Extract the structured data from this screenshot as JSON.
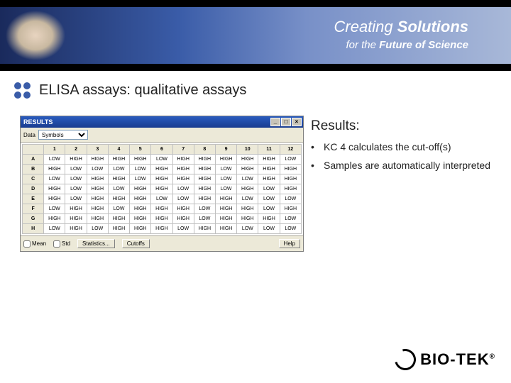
{
  "banner": {
    "line1_prefix": "Creating ",
    "line1_bold": "Solutions",
    "line2_prefix": "for the ",
    "line2_bold": "Future of Science"
  },
  "slide_title": "ELISA assays: qualitative assays",
  "window": {
    "title": "RESULTS",
    "data_label": "Data",
    "data_select": "Symbols",
    "columns": [
      "1",
      "2",
      "3",
      "4",
      "5",
      "6",
      "7",
      "8",
      "9",
      "10",
      "11",
      "12"
    ],
    "rows": [
      {
        "label": "A",
        "cells": [
          "LOW",
          "HIGH",
          "HIGH",
          "HIGH",
          "HIGH",
          "LOW",
          "HIGH",
          "HIGH",
          "HIGH",
          "HIGH",
          "HIGH",
          "LOW"
        ]
      },
      {
        "label": "B",
        "cells": [
          "HIGH",
          "LOW",
          "LOW",
          "LOW",
          "LOW",
          "HIGH",
          "HIGH",
          "HIGH",
          "LOW",
          "HIGH",
          "HIGH",
          "HIGH"
        ]
      },
      {
        "label": "C",
        "cells": [
          "LOW",
          "LOW",
          "HIGH",
          "HIGH",
          "LOW",
          "HIGH",
          "HIGH",
          "HIGH",
          "LOW",
          "LOW",
          "HIGH",
          "HIGH"
        ]
      },
      {
        "label": "D",
        "cells": [
          "HIGH",
          "LOW",
          "HIGH",
          "LOW",
          "HIGH",
          "HIGH",
          "LOW",
          "HIGH",
          "LOW",
          "HIGH",
          "LOW",
          "HIGH"
        ]
      },
      {
        "label": "E",
        "cells": [
          "HIGH",
          "LOW",
          "HIGH",
          "HIGH",
          "HIGH",
          "LOW",
          "LOW",
          "HIGH",
          "HIGH",
          "LOW",
          "LOW",
          "LOW"
        ]
      },
      {
        "label": "F",
        "cells": [
          "LOW",
          "HIGH",
          "HIGH",
          "LOW",
          "HIGH",
          "HIGH",
          "HIGH",
          "LOW",
          "HIGH",
          "HIGH",
          "LOW",
          "HIGH"
        ]
      },
      {
        "label": "G",
        "cells": [
          "HIGH",
          "HIGH",
          "HIGH",
          "HIGH",
          "HIGH",
          "HIGH",
          "HIGH",
          "LOW",
          "HIGH",
          "HIGH",
          "HIGH",
          "LOW"
        ]
      },
      {
        "label": "H",
        "cells": [
          "LOW",
          "HIGH",
          "LOW",
          "HIGH",
          "HIGH",
          "HIGH",
          "LOW",
          "HIGH",
          "HIGH",
          "LOW",
          "LOW",
          "LOW"
        ]
      }
    ],
    "checkbox_mean": "Mean",
    "checkbox_std": "Std",
    "btn_statistics": "Statistics...",
    "btn_cutoffs": "Cutoffs",
    "btn_help": "Help"
  },
  "results": {
    "heading": "Results:",
    "bullets": [
      "KC 4 calculates the cut-off(s)",
      "Samples are automatically interpreted"
    ]
  },
  "logo": {
    "text": "BIO-TEK",
    "registered": "®"
  }
}
